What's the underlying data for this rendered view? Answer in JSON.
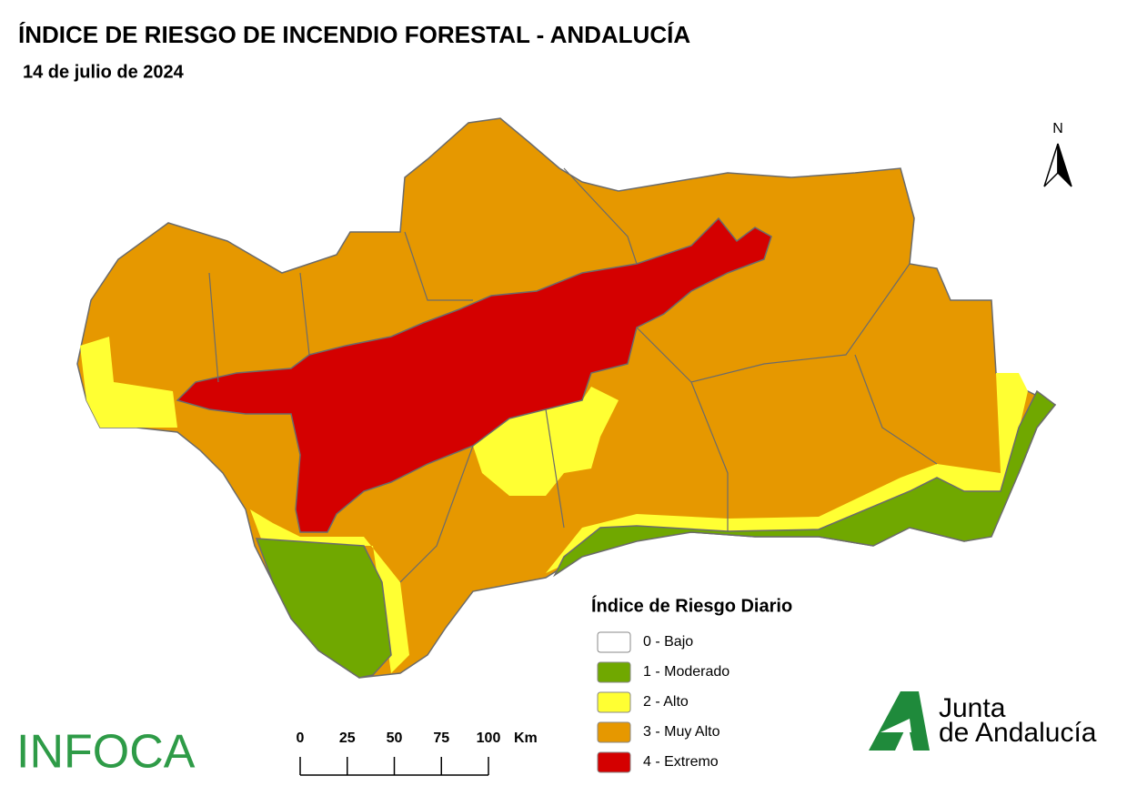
{
  "header": {
    "title": "ÍNDICE DE RIESGO DE INCENDIO FORESTAL - ANDALUCÍA",
    "date": "14 de julio de 2024"
  },
  "north": "N",
  "legend": {
    "title": "Índice de Riesgo Diario",
    "items": [
      {
        "label": "0 - Bajo",
        "color": "#ffffff"
      },
      {
        "label": "1 - Moderado",
        "color": "#70a800"
      },
      {
        "label": "2 - Alto",
        "color": "#ffff33"
      },
      {
        "label": "3 - Muy Alto",
        "color": "#e69800"
      },
      {
        "label": "4 - Extremo",
        "color": "#d40000"
      }
    ]
  },
  "scale": {
    "ticks": [
      0,
      25,
      50,
      75,
      100
    ],
    "unit": "Km"
  },
  "logos": {
    "infoca": "INFOCA",
    "junta": [
      "Junta",
      "de Andalucía"
    ]
  }
}
